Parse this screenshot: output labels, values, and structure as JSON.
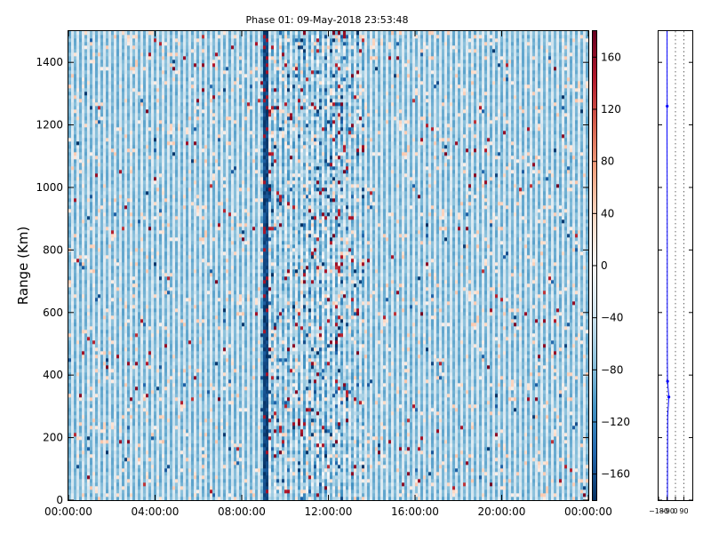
{
  "figure": {
    "title": "Phase 01: 09-May-2018 23:53:48"
  },
  "chart_data": [
    {
      "type": "heatmap",
      "title": "Phase 01: 09-May-2018 23:53:48",
      "ylabel": "Range (Km)",
      "xlabel": "",
      "x_ticks": [
        "00:00:00",
        "04:00:00",
        "08:00:00",
        "12:00:00",
        "16:00:00",
        "20:00:00",
        "00:00:00"
      ],
      "x_range_hours": [
        0,
        24
      ],
      "y_ticks": [
        0,
        200,
        400,
        600,
        800,
        1000,
        1200,
        1400
      ],
      "ylim": [
        0,
        1500
      ],
      "colorbar": {
        "ticks": [
          -160,
          -120,
          -80,
          -40,
          0,
          40,
          80,
          120,
          160
        ],
        "range": [
          -180,
          180
        ],
        "colormap": "RdBu_r",
        "colors": [
          "#053061",
          "#2166ac",
          "#4393c3",
          "#92c5de",
          "#d1e5f0",
          "#f7f7f7",
          "#fddbc7",
          "#f4a582",
          "#d6604d",
          "#b2182b",
          "#67001f"
        ]
      },
      "features": {
        "column_stripes": "alternating light-blue / white columns across the full time span",
        "dark_stripe_hour": 9.1,
        "active_band_hours": [
          8.8,
          13.6
        ],
        "strong_band_hours": [
          10.8,
          12.8
        ]
      }
    },
    {
      "type": "line",
      "x_ticks": [
        -180,
        -90,
        0,
        90
      ],
      "xlim": [
        -180,
        180
      ],
      "ylim": [
        0,
        1500
      ],
      "y_ticks": [
        0,
        200,
        400,
        600,
        800,
        1000,
        1200,
        1400
      ],
      "gridlines_x": [
        -90,
        0,
        90
      ],
      "series": [
        {
          "color": "#0000ff",
          "points": [
            [
              -85,
              0
            ],
            [
              -84,
              100
            ],
            [
              -83,
              200
            ],
            [
              -82,
              270
            ],
            [
              -70,
              330
            ],
            [
              -84,
              380
            ],
            [
              -86,
              450
            ],
            [
              -87,
              600
            ],
            [
              -87,
              800
            ],
            [
              -88,
              1000
            ],
            [
              -90,
              1200
            ],
            [
              -88,
              1260
            ],
            [
              -89,
              1400
            ],
            [
              -89,
              1500
            ]
          ]
        }
      ]
    }
  ]
}
